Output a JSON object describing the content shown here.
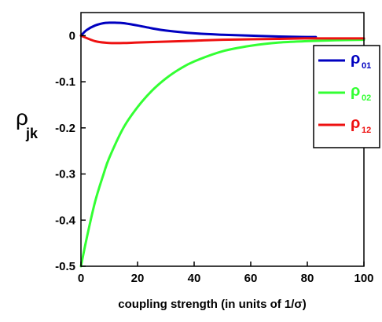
{
  "chart_data": {
    "type": "line",
    "title": "",
    "xlabel": "coupling strength (in units of 1/σ)",
    "ylabel": "ρ jk",
    "ylabel_symbol": "ρ",
    "ylabel_sub": "jk",
    "xlim": [
      0,
      100
    ],
    "ylim": [
      -0.5,
      0.05
    ],
    "xticks": [
      0,
      20,
      40,
      60,
      80,
      100
    ],
    "xtick_labels": [
      "0",
      "20",
      "40",
      "60",
      "80",
      "100"
    ],
    "yticks": [
      0,
      -0.1,
      -0.2,
      -0.3,
      -0.4,
      -0.5
    ],
    "ytick_labels": [
      "0",
      "-0.1",
      "-0.2",
      "-0.3",
      "-0.4",
      "-0.5"
    ],
    "grid": false,
    "legend_position": "right",
    "series": [
      {
        "name": "ρ 01",
        "label_symbol": "ρ",
        "label_sub": "01",
        "color": "#0000c0",
        "x": [
          0,
          2,
          5,
          8,
          10,
          12,
          15,
          20,
          25,
          30,
          40,
          50,
          60,
          70,
          80,
          83
        ],
        "y": [
          0,
          0.012,
          0.022,
          0.027,
          0.028,
          0.028,
          0.027,
          0.022,
          0.016,
          0.011,
          0.005,
          0.002,
          0.0,
          -0.002,
          -0.003,
          -0.003
        ]
      },
      {
        "name": "ρ 02",
        "label_symbol": "ρ",
        "label_sub": "02",
        "color": "#33ff33",
        "x": [
          0,
          2,
          5,
          8,
          10,
          15,
          20,
          25,
          30,
          35,
          40,
          50,
          60,
          70,
          80,
          90,
          100
        ],
        "y": [
          -0.5,
          -0.44,
          -0.36,
          -0.3,
          -0.265,
          -0.2,
          -0.155,
          -0.12,
          -0.093,
          -0.072,
          -0.056,
          -0.034,
          -0.022,
          -0.015,
          -0.012,
          -0.01,
          -0.009
        ]
      },
      {
        "name": "ρ 12",
        "label_symbol": "ρ",
        "label_sub": "12",
        "color": "#ee1111",
        "x": [
          0,
          5,
          10,
          15,
          20,
          30,
          40,
          50,
          60,
          70,
          80,
          90,
          100
        ],
        "y": [
          0,
          -0.012,
          -0.016,
          -0.016,
          -0.015,
          -0.013,
          -0.011,
          -0.009,
          -0.008,
          -0.007,
          -0.006,
          -0.006,
          -0.006
        ]
      }
    ]
  }
}
